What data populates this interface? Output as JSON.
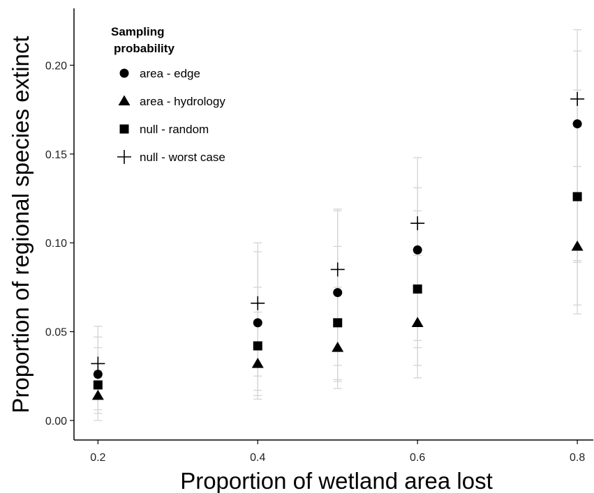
{
  "chart_data": {
    "type": "scatter",
    "xlabel": "Proportion of wetland area lost",
    "ylabel": "Proportion of regional species extinct",
    "xlim": [
      0.17,
      0.82
    ],
    "ylim": [
      -0.011,
      0.232
    ],
    "x_ticks": [
      "0.2",
      "0.4",
      "0.6",
      "0.8"
    ],
    "y_ticks": [
      "0.00",
      "0.05",
      "0.10",
      "0.15",
      "0.20"
    ],
    "grid": false,
    "legend": {
      "title_line1": "Sampling",
      "title_line2": "probability",
      "placement": "top-left"
    },
    "x": [
      0.2,
      0.4,
      0.5,
      0.6,
      0.8
    ],
    "series": [
      {
        "name": "area - edge",
        "marker": "circle",
        "values": [
          0.026,
          0.055,
          0.072,
          0.096,
          0.167
        ],
        "error_low": [
          0.006,
          0.017,
          0.023,
          0.041,
          0.06
        ],
        "error_high": [
          0.047,
          0.095,
          0.118,
          0.148,
          0.22
        ]
      },
      {
        "name": "area - hydrology",
        "marker": "triangle",
        "values": [
          0.014,
          0.032,
          0.041,
          0.055,
          0.098
        ],
        "error_low": [
          0.004,
          0.012,
          0.018,
          0.024,
          0.065
        ],
        "error_high": [
          0.028,
          0.061,
          0.075,
          0.093,
          0.143
        ]
      },
      {
        "name": "null - random",
        "marker": "square",
        "values": [
          0.02,
          0.042,
          0.055,
          0.074,
          0.126
        ],
        "error_low": [
          0.0,
          0.014,
          0.022,
          0.031,
          0.089
        ],
        "error_high": [
          0.041,
          0.075,
          0.098,
          0.118,
          0.186
        ]
      },
      {
        "name": "null - worst case",
        "marker": "plus",
        "values": [
          0.032,
          0.066,
          0.085,
          0.111,
          0.181
        ],
        "error_low": [
          0.012,
          0.025,
          0.031,
          0.045,
          0.09
        ],
        "error_high": [
          0.053,
          0.1,
          0.119,
          0.131,
          0.208
        ]
      }
    ],
    "colors": {
      "marker": "#000000",
      "error_bar": "#d4d4d4",
      "axis": "#000000"
    }
  }
}
